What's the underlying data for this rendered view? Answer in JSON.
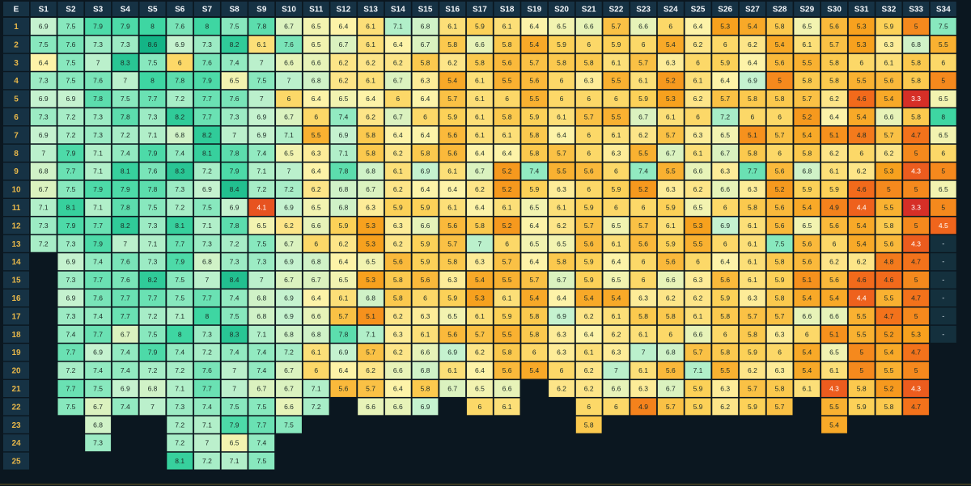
{
  "chart_data": {
    "type": "heatmap",
    "corner_label": "E",
    "columns": [
      "S1",
      "S2",
      "S3",
      "S4",
      "S5",
      "S6",
      "S7",
      "S8",
      "S9",
      "S10",
      "S11",
      "S12",
      "S13",
      "S14",
      "S15",
      "S16",
      "S17",
      "S18",
      "S19",
      "S20",
      "S21",
      "S22",
      "S23",
      "S24",
      "S25",
      "S26",
      "S27",
      "S28",
      "S29",
      "S30",
      "S31",
      "S32",
      "S33",
      "S34"
    ],
    "rows": [
      "1",
      "2",
      "3",
      "4",
      "5",
      "6",
      "7",
      "8",
      "9",
      "10",
      "11",
      "12",
      "13",
      "14",
      "15",
      "16",
      "17",
      "18",
      "19",
      "20",
      "21",
      "22",
      "23",
      "24",
      "25"
    ],
    "cells": [
      [
        "6.9",
        "7.5",
        "7.9",
        "7.9",
        "8",
        "7.6",
        "8",
        "7.5",
        "7.8",
        "6.7",
        "6.5",
        "6.4",
        "6.1",
        "7.1",
        "6.8",
        "6.1",
        "5.9",
        "6.1",
        "6.4",
        "6.5",
        "6.6",
        "5.7",
        "6.6",
        "6",
        "6.4",
        "5.3",
        "5.4",
        "5.8",
        "6.5",
        "5.6",
        "5.3",
        "5.9",
        "5",
        "7.5"
      ],
      [
        "7.5",
        "7.6",
        "7.3",
        "7.3",
        "8.6",
        "6.9",
        "7.3",
        "8.2",
        "6.1",
        "7.6",
        "6.5",
        "6.7",
        "6.1",
        "6.4",
        "6.7",
        "5.8",
        "6.6",
        "5.8",
        "5.4",
        "5.9",
        "6",
        "5.9",
        "6",
        "5.4",
        "6.2",
        "6",
        "6.2",
        "5.4",
        "6.1",
        "5.7",
        "5.3",
        "6.3",
        "6.8",
        "5.5"
      ],
      [
        "6.4",
        "7.5",
        "7",
        "8.3",
        "7.5",
        "6",
        "7.6",
        "7.4",
        "7",
        "6.6",
        "6.6",
        "6.2",
        "6.2",
        "6.2",
        "5.8",
        "6.2",
        "5.8",
        "5.6",
        "5.7",
        "5.8",
        "5.8",
        "6.1",
        "5.7",
        "6.3",
        "6",
        "5.9",
        "6.4",
        "5.6",
        "5.5",
        "5.8",
        "6",
        "6.1",
        "5.8",
        "6"
      ],
      [
        "7.3",
        "7.5",
        "7.6",
        "7",
        "8",
        "7.8",
        "7.9",
        "6.5",
        "7.5",
        "7",
        "6.8",
        "6.2",
        "6.1",
        "6.7",
        "6.3",
        "5.4",
        "6.1",
        "5.5",
        "5.6",
        "6",
        "6.3",
        "5.5",
        "6.1",
        "5.2",
        "6.1",
        "6.4",
        "6.9",
        "5",
        "5.8",
        "5.8",
        "5.5",
        "5.6",
        "5.8",
        "5"
      ],
      [
        "6.9",
        "6.9",
        "7.8",
        "7.5",
        "7.7",
        "7.2",
        "7.7",
        "7.6",
        "7",
        "6",
        "6.4",
        "6.5",
        "6.4",
        "6",
        "6.4",
        "5.7",
        "6.1",
        "6",
        "5.5",
        "6",
        "6",
        "6",
        "5.9",
        "5.3",
        "6.2",
        "5.7",
        "5.8",
        "5.8",
        "5.7",
        "6.2",
        "4.6",
        "5.4",
        "3.3",
        "6.5"
      ],
      [
        "7.3",
        "7.2",
        "7.3",
        "7.8",
        "7.3",
        "8.2",
        "7.7",
        "7.3",
        "6.9",
        "6.7",
        "6",
        "7.4",
        "6.2",
        "6.7",
        "6",
        "5.9",
        "6.1",
        "5.8",
        "5.9",
        "6.1",
        "5.7",
        "5.5",
        "6.7",
        "6.1",
        "6",
        "7.2",
        "6",
        "6",
        "5.2",
        "6.4",
        "5.4",
        "6.6",
        "5.8",
        "8"
      ],
      [
        "6.9",
        "7.2",
        "7.3",
        "7.2",
        "7.1",
        "6.8",
        "8.2",
        "7",
        "6.9",
        "7.1",
        "5.5",
        "6.9",
        "5.8",
        "6.4",
        "6.4",
        "5.6",
        "6.1",
        "6.1",
        "5.8",
        "6.4",
        "6",
        "6.1",
        "6.2",
        "5.7",
        "6.3",
        "6.5",
        "5.1",
        "5.7",
        "5.4",
        "5.1",
        "4.8",
        "5.7",
        "4.7",
        "6.5"
      ],
      [
        "7",
        "7.9",
        "7.1",
        "7.4",
        "7.9",
        "7.4",
        "8.1",
        "7.8",
        "7.4",
        "6.5",
        "6.3",
        "7.1",
        "5.8",
        "6.2",
        "5.8",
        "5.6",
        "6.4",
        "6.4",
        "5.8",
        "5.7",
        "6",
        "6.3",
        "5.5",
        "6.7",
        "6.1",
        "6.7",
        "5.8",
        "6",
        "5.8",
        "6.2",
        "6",
        "6.2",
        "5",
        "6"
      ],
      [
        "6.8",
        "7.7",
        "7.1",
        "8.1",
        "7.6",
        "8.3",
        "7.2",
        "7.9",
        "7.1",
        "7",
        "6.4",
        "7.8",
        "6.8",
        "6.1",
        "6.9",
        "6.1",
        "6.7",
        "5.2",
        "7.4",
        "5.5",
        "5.6",
        "6",
        "7.4",
        "5.5",
        "6.6",
        "6.3",
        "7.7",
        "5.6",
        "6.8",
        "6.1",
        "6.2",
        "5.3",
        "4.3",
        "5"
      ],
      [
        "6.7",
        "7.5",
        "7.9",
        "7.9",
        "7.8",
        "7.3",
        "6.9",
        "8.4",
        "7.2",
        "7.2",
        "6.2",
        "6.8",
        "6.7",
        "6.2",
        "6.4",
        "6.4",
        "6.2",
        "5.2",
        "5.9",
        "6.3",
        "6",
        "5.9",
        "5.2",
        "6.3",
        "6.2",
        "6.6",
        "6.3",
        "5.2",
        "5.9",
        "5.9",
        "4.6",
        "5",
        "5",
        "6.5"
      ],
      [
        "7.1",
        "8.1",
        "7.1",
        "7.8",
        "7.5",
        "7.2",
        "7.5",
        "6.9",
        "4.1",
        "6.9",
        "6.5",
        "6.8",
        "6.3",
        "5.9",
        "5.9",
        "6.1",
        "6.4",
        "6.1",
        "6.5",
        "6.1",
        "5.9",
        "6",
        "6",
        "5.9",
        "6.5",
        "6",
        "5.8",
        "5.6",
        "5.4",
        "4.9",
        "4.4",
        "5.5",
        "3.3",
        "5"
      ],
      [
        "7.3",
        "7.9",
        "7.7",
        "8.2",
        "7.3",
        "8.1",
        "7.1",
        "7.8",
        "6.5",
        "6.2",
        "6.6",
        "5.9",
        "5.3",
        "6.3",
        "6.6",
        "5.6",
        "5.8",
        "5.2",
        "6.4",
        "6.2",
        "5.7",
        "6.5",
        "5.7",
        "6.1",
        "5.3",
        "6.9",
        "6.1",
        "5.6",
        "6.5",
        "5.6",
        "5.4",
        "5.8",
        "5",
        "4.5"
      ],
      [
        "7.2",
        "7.3",
        "7.9",
        "7",
        "7.1",
        "7.7",
        "7.3",
        "7.2",
        "7.5",
        "6.7",
        "6",
        "6.2",
        "5.3",
        "6.2",
        "5.9",
        "5.7",
        "7",
        "6",
        "6.5",
        "6.5",
        "5.6",
        "6.1",
        "5.6",
        "5.9",
        "5.5",
        "6",
        "6.1",
        "7.5",
        "5.6",
        "6",
        "5.4",
        "5.6",
        "4.3",
        "-"
      ],
      [
        null,
        "6.9",
        "7.4",
        "7.6",
        "7.3",
        "7.9",
        "6.8",
        "7.3",
        "7.3",
        "6.9",
        "6.8",
        "6.4",
        "6.5",
        "5.6",
        "5.9",
        "5.8",
        "6.3",
        "5.7",
        "6.4",
        "5.8",
        "5.9",
        "6.4",
        "6",
        "5.6",
        "6",
        "6.4",
        "6.1",
        "5.8",
        "5.6",
        "6.2",
        "6.2",
        "4.8",
        "4.7",
        "-"
      ],
      [
        null,
        "7.3",
        "7.7",
        "7.6",
        "8.2",
        "7.5",
        "7",
        "8.4",
        "7",
        "6.7",
        "6.7",
        "6.5",
        "5.3",
        "5.8",
        "5.6",
        "6.3",
        "5.4",
        "5.5",
        "5.7",
        "6.7",
        "5.9",
        "6.5",
        "6",
        "6.6",
        "6.3",
        "5.6",
        "6.1",
        "5.9",
        "5.1",
        "5.6",
        "4.6",
        "4.6",
        "5",
        "-"
      ],
      [
        null,
        "6.9",
        "7.6",
        "7.7",
        "7.7",
        "7.5",
        "7.7",
        "7.4",
        "6.8",
        "6.9",
        "6.4",
        "6.1",
        "6.8",
        "5.8",
        "6",
        "5.9",
        "5.3",
        "6.1",
        "5.4",
        "6.4",
        "5.4",
        "5.4",
        "6.3",
        "6.2",
        "6.2",
        "5.9",
        "6.3",
        "5.8",
        "5.4",
        "5.4",
        "4.4",
        "5.5",
        "4.7",
        "-"
      ],
      [
        null,
        "7.3",
        "7.4",
        "7.7",
        "7.2",
        "7.1",
        "8",
        "7.5",
        "6.8",
        "6.9",
        "6.6",
        "5.7",
        "5.1",
        "6.2",
        "6.3",
        "6.5",
        "6.1",
        "5.9",
        "5.8",
        "6.9",
        "6.2",
        "6.1",
        "5.8",
        "5.8",
        "6.1",
        "5.8",
        "5.7",
        "5.7",
        "6.6",
        "6.6",
        "5.5",
        "4.7",
        "5",
        "-"
      ],
      [
        null,
        "7.4",
        "7.7",
        "6.7",
        "7.5",
        "8",
        "7.3",
        "8.3",
        "7.1",
        "6.8",
        "6.8",
        "7.8",
        "7.1",
        "6.3",
        "6.1",
        "5.6",
        "5.7",
        "5.5",
        "5.8",
        "6.3",
        "6.4",
        "6.2",
        "6.1",
        "6",
        "6.6",
        "6",
        "5.8",
        "6.3",
        "6",
        "5.1",
        "5.5",
        "5.2",
        "5.3",
        "-"
      ],
      [
        null,
        "7.7",
        "6.9",
        "7.4",
        "7.9",
        "7.4",
        "7.2",
        "7.4",
        "7.4",
        "7.2",
        "6.1",
        "6.9",
        "5.7",
        "6.2",
        "6.6",
        "6.9",
        "6.2",
        "5.8",
        "6",
        "6.3",
        "6.1",
        "6.3",
        "7",
        "6.8",
        "5.7",
        "5.8",
        "5.9",
        "6",
        "5.4",
        "6.5",
        "5",
        "5.4",
        "4.7",
        null
      ],
      [
        null,
        "7.2",
        "7.4",
        "7.4",
        "7.2",
        "7.2",
        "7.6",
        "7",
        "7.4",
        "6.7",
        "6",
        "6.4",
        "6.2",
        "6.6",
        "6.8",
        "6.1",
        "6.4",
        "5.6",
        "5.4",
        "6",
        "6.2",
        "7",
        "6.1",
        "5.6",
        "7.1",
        "5.5",
        "6.2",
        "6.3",
        "5.4",
        "6.1",
        "5",
        "5.5",
        "5",
        null
      ],
      [
        null,
        "7.7",
        "7.5",
        "6.9",
        "6.8",
        "7.1",
        "7.7",
        "7",
        "6.7",
        "6.7",
        "7.1",
        "5.6",
        "5.7",
        "6.4",
        "5.8",
        "6.7",
        "6.5",
        "6.6",
        null,
        "6.2",
        "6.2",
        "6.6",
        "6.3",
        "6.7",
        "5.9",
        "6.3",
        "5.7",
        "5.8",
        "6.1",
        "4.3",
        "5.8",
        "5.2",
        "4.3",
        null
      ],
      [
        null,
        "7.5",
        "6.7",
        "7.4",
        "7",
        "7.3",
        "7.4",
        "7.5",
        "7.5",
        "6.6",
        "7.2",
        null,
        "6.6",
        "6.6",
        "6.9",
        null,
        "6",
        "6.1",
        null,
        null,
        "6",
        "6",
        "4.9",
        "5.7",
        "5.9",
        "6.2",
        "5.9",
        "5.7",
        null,
        "5.5",
        "5.9",
        "5.8",
        "4.7",
        null
      ],
      [
        null,
        null,
        "6.8",
        null,
        null,
        "7.2",
        "7.1",
        "7.9",
        "7.7",
        "7.5",
        null,
        null,
        null,
        null,
        null,
        null,
        null,
        null,
        null,
        null,
        "5.8",
        null,
        null,
        null,
        null,
        null,
        null,
        null,
        null,
        "5.4",
        null,
        null,
        null,
        null
      ],
      [
        null,
        null,
        "7.3",
        null,
        null,
        "7.2",
        "7",
        "6.5",
        "7.4",
        null,
        null,
        null,
        null,
        null,
        null,
        null,
        null,
        null,
        null,
        null,
        null,
        null,
        null,
        null,
        null,
        null,
        null,
        null,
        null,
        null,
        null,
        null,
        null,
        null
      ],
      [
        null,
        null,
        null,
        null,
        null,
        "8.1",
        "7.2",
        "7.1",
        "7.5",
        null,
        null,
        null,
        null,
        null,
        null,
        null,
        null,
        null,
        null,
        null,
        null,
        null,
        null,
        null,
        null,
        null,
        null,
        null,
        null,
        null,
        null,
        null,
        null,
        null
      ]
    ],
    "color_scale": {
      "stops": [
        {
          "value": 3.3,
          "color": "#d62f27"
        },
        {
          "value": 4.6,
          "color": "#f26a1b"
        },
        {
          "value": 5.3,
          "color": "#f7a11e"
        },
        {
          "value": 5.9,
          "color": "#fcd158"
        },
        {
          "value": 6.4,
          "color": "#fdf3a8"
        },
        {
          "value": 6.9,
          "color": "#c5f2cf"
        },
        {
          "value": 7.5,
          "color": "#88e8be"
        },
        {
          "value": 8.0,
          "color": "#3ed6a2"
        },
        {
          "value": 8.6,
          "color": "#14b486"
        }
      ],
      "missing_color": "#14303d",
      "background": "#0b1720",
      "header_fill": "#163244",
      "row_label_color": "#e8b84a"
    }
  }
}
